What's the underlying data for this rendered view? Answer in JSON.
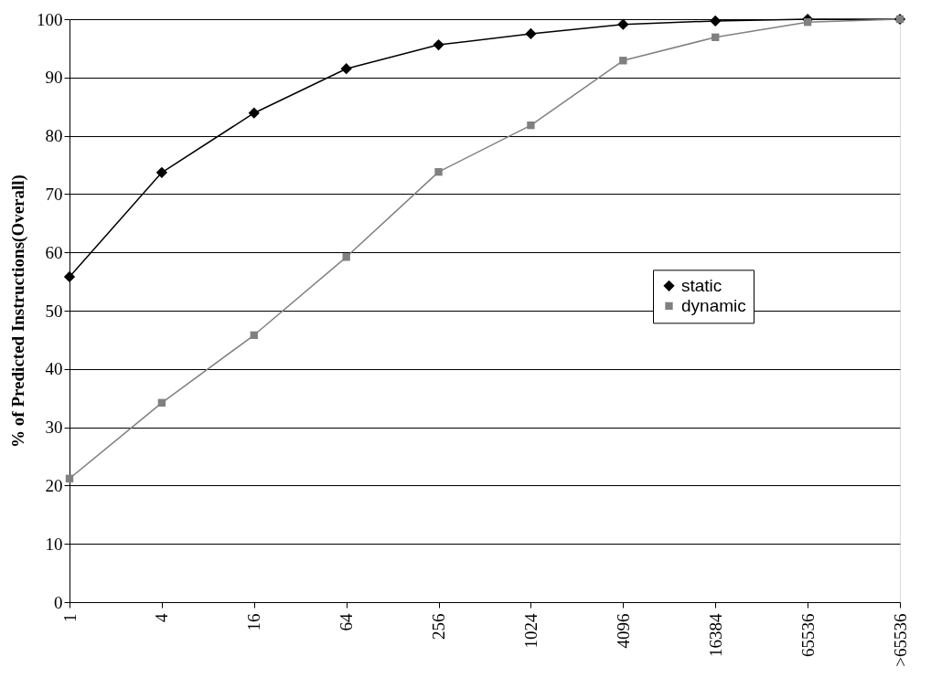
{
  "chart_data": {
    "type": "line",
    "ylabel": "% of Predicted Instructions(Overall)",
    "categories": [
      "1",
      "4",
      "16",
      "64",
      "256",
      "1024",
      "4096",
      "16384",
      "65536",
      ">65536"
    ],
    "series": [
      {
        "name": "static",
        "color": "#000000",
        "marker": "diamond",
        "values": [
          55.8,
          73.7,
          83.9,
          91.5,
          95.6,
          97.5,
          99.1,
          99.7,
          100,
          100
        ]
      },
      {
        "name": "dynamic",
        "color": "#808080",
        "marker": "square",
        "values": [
          21.2,
          34.2,
          45.8,
          59.2,
          73.8,
          81.8,
          92.9,
          96.9,
          99.5,
          100
        ]
      }
    ],
    "ylim": [
      0,
      100
    ],
    "yticks": [
      0,
      10,
      20,
      30,
      40,
      50,
      60,
      70,
      80,
      90,
      100
    ],
    "grid": "y",
    "legend": "right",
    "line_style": "solid"
  }
}
